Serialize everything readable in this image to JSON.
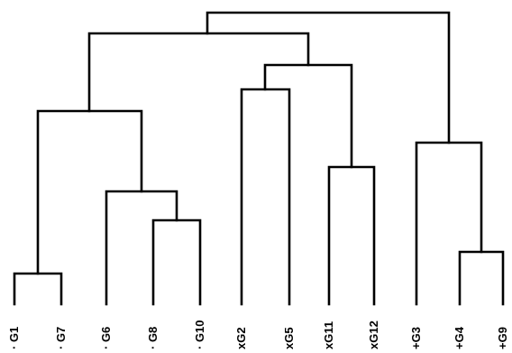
{
  "dendrogram": {
    "leaves": [
      "· G1",
      "· G7",
      "· G6",
      "· G8",
      "· G10",
      "xG2",
      "xG5",
      "xG11",
      "xG12",
      "+G3",
      "+G4",
      "+G9"
    ],
    "line_color": "#000000",
    "label_color": "#000000"
  }
}
